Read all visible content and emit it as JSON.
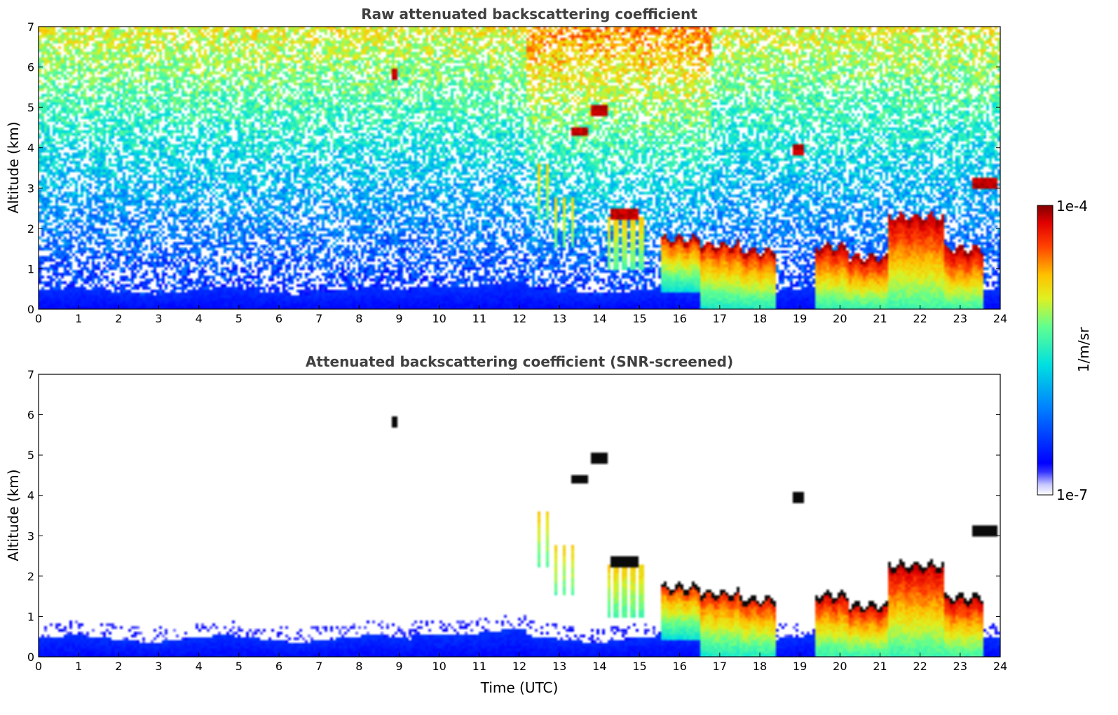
{
  "chart_data": [
    {
      "type": "heatmap",
      "title": "Raw attenuated backscattering coefficient",
      "xlabel": "",
      "ylabel": "Altitude (km)",
      "xlim": [
        0,
        24
      ],
      "ylim": [
        0,
        7
      ],
      "x_ticks": [
        "0",
        "1",
        "2",
        "3",
        "4",
        "5",
        "6",
        "7",
        "8",
        "9",
        "10",
        "11",
        "12",
        "13",
        "14",
        "15",
        "16",
        "17",
        "18",
        "19",
        "20",
        "21",
        "22",
        "23",
        "24"
      ],
      "y_ticks": [
        "0",
        "1",
        "2",
        "3",
        "4",
        "5",
        "6",
        "7"
      ],
      "screened": false
    },
    {
      "type": "heatmap",
      "title": "Attenuated backscattering coefficient (SNR-screened)",
      "xlabel": "Time (UTC)",
      "ylabel": "Altitude (km)",
      "xlim": [
        0,
        24
      ],
      "ylim": [
        0,
        7
      ],
      "x_ticks": [
        "0",
        "1",
        "2",
        "3",
        "4",
        "5",
        "6",
        "7",
        "8",
        "9",
        "10",
        "11",
        "12",
        "13",
        "14",
        "15",
        "16",
        "17",
        "18",
        "19",
        "20",
        "21",
        "22",
        "23",
        "24"
      ],
      "y_ticks": [
        "0",
        "1",
        "2",
        "3",
        "4",
        "5",
        "6",
        "7"
      ],
      "screened": true
    }
  ],
  "colorbar": {
    "label": "1/m/sr",
    "max_label": "1e-4",
    "min_label": "1e-7",
    "range": [
      1e-07,
      0.0001
    ],
    "scale": "log",
    "colormap": "jet"
  },
  "features": {
    "boundary_layer_top_km": 0.45,
    "cloud_segments": [
      {
        "t0": 15.5,
        "t1": 16.5,
        "base": 0.45,
        "top": 1.75
      },
      {
        "t0": 16.5,
        "t1": 17.5,
        "base": 0.0,
        "top": 1.6
      },
      {
        "t0": 17.5,
        "t1": 18.4,
        "base": 0.0,
        "top": 1.45
      },
      {
        "t0": 19.4,
        "t1": 20.2,
        "base": 0.0,
        "top": 1.55
      },
      {
        "t0": 20.2,
        "t1": 21.2,
        "base": 0.0,
        "top": 1.3
      },
      {
        "t0": 21.2,
        "t1": 22.6,
        "base": 0.0,
        "top": 2.3
      },
      {
        "t0": 22.6,
        "t1": 23.55,
        "base": 0.0,
        "top": 1.5
      }
    ],
    "virga": [
      {
        "t0": 12.3,
        "t1": 12.8,
        "base": 2.2,
        "top": 3.6
      },
      {
        "t0": 12.8,
        "t1": 13.4,
        "base": 1.5,
        "top": 2.8
      },
      {
        "t0": 14.2,
        "t1": 15.2,
        "base": 1.0,
        "top": 2.3
      }
    ],
    "elevated_layers": [
      {
        "t0": 14.3,
        "t1": 15.0,
        "alt": 2.35
      },
      {
        "t0": 13.3,
        "t1": 13.7,
        "alt": 4.4
      },
      {
        "t0": 13.8,
        "t1": 14.2,
        "alt": 4.9
      },
      {
        "t0": 18.85,
        "t1": 19.1,
        "alt": 3.95
      },
      {
        "t0": 23.3,
        "t1": 23.95,
        "alt": 3.1
      },
      {
        "t0": 8.85,
        "t1": 8.95,
        "alt": 5.8
      }
    ]
  }
}
